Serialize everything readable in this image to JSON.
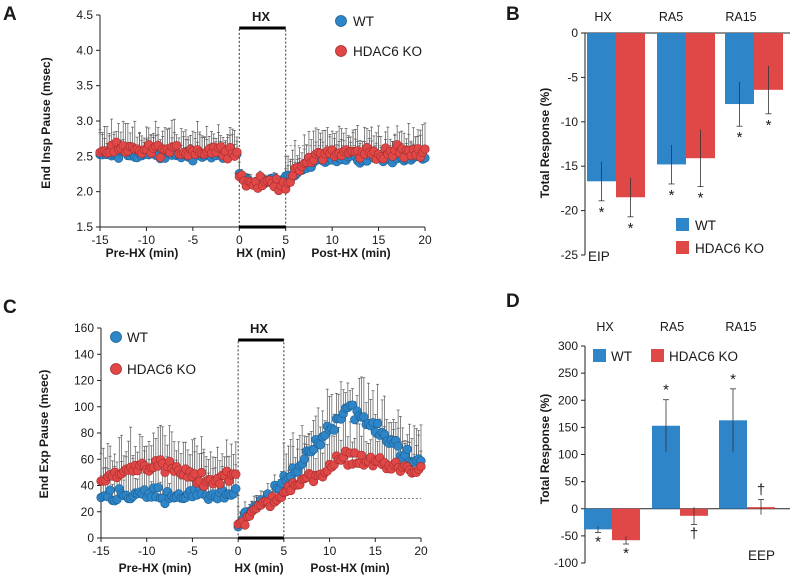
{
  "colors": {
    "wt": "#2e86c9",
    "ko": "#e04848",
    "wt_edge": "#1c5f92",
    "ko_edge": "#a82c2c",
    "axis": "#222222"
  },
  "chart_data": [
    {
      "panel": "A",
      "type": "scatter",
      "ylabel": "End Insp Pause (msec)",
      "xlim": [
        -15,
        20
      ],
      "ylim": [
        1.5,
        4.5
      ],
      "yticks": [
        1.5,
        2.0,
        2.5,
        3.0,
        3.5,
        4.0,
        4.5
      ],
      "ytick_labels": [
        "1.5",
        "2.0",
        "2.5",
        "3.0",
        "3.5",
        "4.0",
        "4.5"
      ],
      "xticks": [
        -15,
        -10,
        -5,
        0,
        5,
        10,
        15,
        20
      ],
      "xtick_labels": [
        "-15",
        "-10",
        "-5",
        "0",
        "5",
        "10",
        "15",
        "20"
      ],
      "section_labels": [
        "Pre-HX (min)",
        "HX (min)",
        "Post-HX (min)"
      ],
      "hx_label": "HX",
      "legend": [
        "WT",
        "HDAC6 KO"
      ],
      "baseline": 2.65,
      "series": [
        {
          "name": "WT",
          "pre_mean": 2.52,
          "hx_mean": 2.15,
          "post_mean": 2.48,
          "spread": 0.11,
          "err": 0.22
        },
        {
          "name": "HDAC6 KO",
          "pre_mean": 2.58,
          "hx_mean": 2.12,
          "post_mean": 2.55,
          "spread": 0.13,
          "err": 0.3
        }
      ]
    },
    {
      "panel": "B",
      "type": "bar",
      "ylabel": "Total Response (%)",
      "categories": [
        "HX",
        "RA5",
        "RA15"
      ],
      "ylim": [
        -25,
        0
      ],
      "yticks": [
        0,
        -5,
        -10,
        -15,
        -20,
        -25
      ],
      "ytick_labels": [
        "0",
        "-5",
        "-10",
        "-15",
        "-20",
        "-25"
      ],
      "legend": [
        "WT",
        "HDAC6 KO"
      ],
      "note": "EIP",
      "series": [
        {
          "name": "WT",
          "values": [
            -16.7,
            -14.8,
            -8.0
          ],
          "errors": [
            2.2,
            2.2,
            2.5
          ],
          "marks": [
            "*",
            "*",
            "*"
          ]
        },
        {
          "name": "HDAC6 KO",
          "values": [
            -18.5,
            -14.1,
            -6.4
          ],
          "errors": [
            2.2,
            3.2,
            2.7
          ],
          "marks": [
            "*",
            "*",
            "*"
          ]
        }
      ]
    },
    {
      "panel": "C",
      "type": "scatter",
      "ylabel": "End Exp Pause (msec)",
      "xlim": [
        -15,
        20
      ],
      "ylim": [
        0,
        160
      ],
      "yticks": [
        0,
        20,
        40,
        60,
        80,
        100,
        120,
        140,
        160
      ],
      "ytick_labels": [
        "0",
        "20",
        "40",
        "60",
        "80",
        "100",
        "120",
        "140",
        "160"
      ],
      "xticks": [
        -15,
        -10,
        -5,
        0,
        5,
        10,
        15,
        20
      ],
      "xtick_labels": [
        "-15",
        "-10",
        "-5",
        "0",
        "5",
        "10",
        "15",
        "20"
      ],
      "section_labels": [
        "Pre-HX (min)",
        "HX (min)",
        "Post-HX (min)"
      ],
      "hx_label": "HX",
      "legend": [
        "WT",
        "HDAC6 KO"
      ],
      "baseline": 30,
      "series": [
        {
          "name": "WT",
          "pre_mean": 33,
          "hx_start": 10,
          "hx_end": 42,
          "post_peak": 100,
          "spread": 8,
          "err": 22
        },
        {
          "name": "HDAC6 KO",
          "pre_mean": 50,
          "hx_start": 12,
          "hx_end": 35,
          "post_peak": 62,
          "spread": 8,
          "err": 22
        }
      ]
    },
    {
      "panel": "D",
      "type": "bar",
      "ylabel": "Total Response (%)",
      "categories": [
        "HX",
        "RA5",
        "RA15"
      ],
      "ylim": [
        -100,
        300
      ],
      "yticks": [
        300,
        250,
        200,
        150,
        100,
        50,
        0,
        -50,
        -100
      ],
      "ytick_labels": [
        "300",
        "250",
        "200",
        "150",
        "100",
        "50",
        "0",
        "-50",
        "-100"
      ],
      "legend": [
        "WT",
        "HDAC6 KO"
      ],
      "note": "EEP",
      "series": [
        {
          "name": "WT",
          "values": [
            -38,
            153,
            163
          ],
          "errors": [
            6,
            48,
            58
          ],
          "marks": [
            "*",
            "*",
            "*"
          ]
        },
        {
          "name": "HDAC6 KO",
          "values": [
            -58,
            -13,
            3
          ],
          "errors": [
            7,
            16,
            14
          ],
          "marks": [
            "*",
            "†",
            "†"
          ]
        }
      ]
    }
  ]
}
